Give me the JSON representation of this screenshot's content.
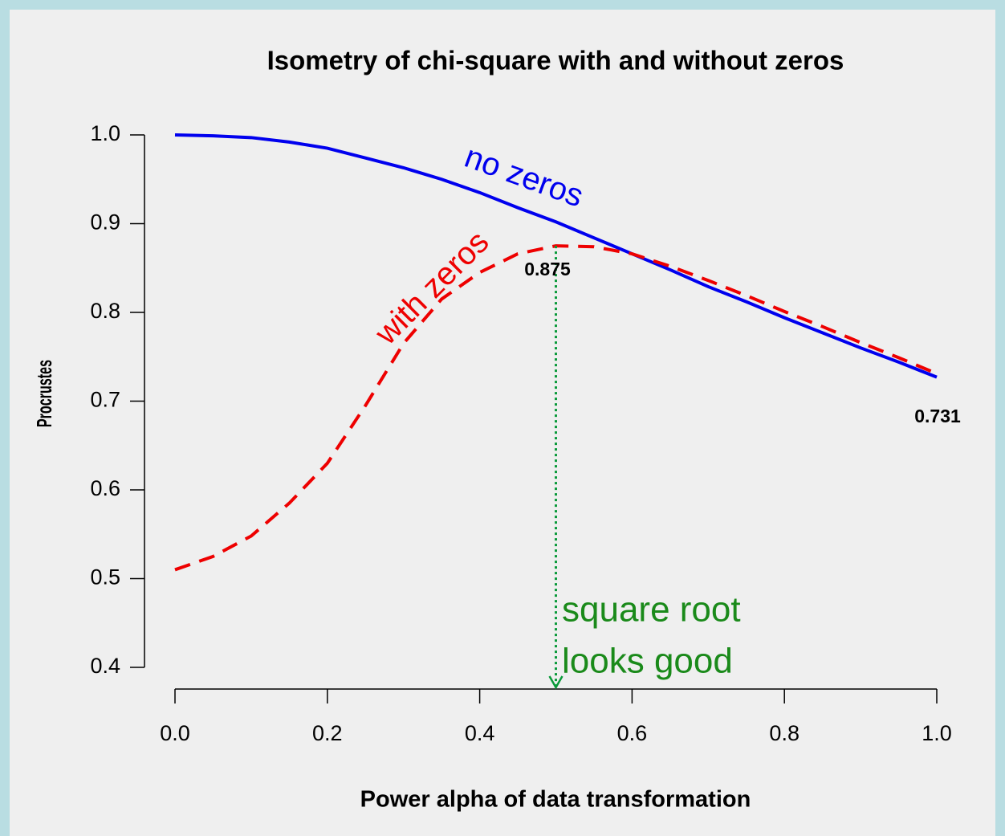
{
  "chart_data": {
    "type": "line",
    "title": "Isometry of chi-square with and without zeros",
    "x_label": "Power alpha of data transformation",
    "y_label": "Procrustes",
    "x": [
      0,
      0.05,
      0.1,
      0.15,
      0.2,
      0.25,
      0.3,
      0.35,
      0.4,
      0.45,
      0.5,
      0.55,
      0.6,
      0.65,
      0.7,
      0.75,
      0.8,
      0.85,
      0.9,
      0.95,
      1.0
    ],
    "series": [
      {
        "name": "no zeros",
        "color": "#0000ee",
        "dash": "solid",
        "values": [
          1.0,
          0.999,
          0.997,
          0.992,
          0.985,
          0.974,
          0.963,
          0.95,
          0.935,
          0.918,
          0.902,
          0.884,
          0.866,
          0.848,
          0.829,
          0.812,
          0.794,
          0.777,
          0.76,
          0.744,
          0.727
        ]
      },
      {
        "name": "with zeros",
        "color": "#ee0000",
        "dash": "dashed",
        "values": [
          0.51,
          0.525,
          0.548,
          0.585,
          0.63,
          0.695,
          0.765,
          0.815,
          0.845,
          0.866,
          0.875,
          0.874,
          0.866,
          0.852,
          0.836,
          0.819,
          0.801,
          0.784,
          0.766,
          0.749,
          0.731
        ]
      }
    ],
    "annotations": [
      "0.875",
      "0.731",
      "square root",
      "looks good"
    ],
    "xlim": [
      0,
      1.0
    ],
    "xticks": [
      {
        "value": 0,
        "label": "0.0"
      },
      0.2,
      0.4,
      0.6,
      0.8,
      {
        "value": 1,
        "label": "1.0"
      }
    ],
    "ylim": [
      0.4,
      1.0
    ],
    "yticks": [
      0.4,
      0.5,
      0.6,
      0.7,
      0.8,
      0.9,
      {
        "value": 1,
        "label": "1.0"
      }
    ],
    "grid": false
  }
}
